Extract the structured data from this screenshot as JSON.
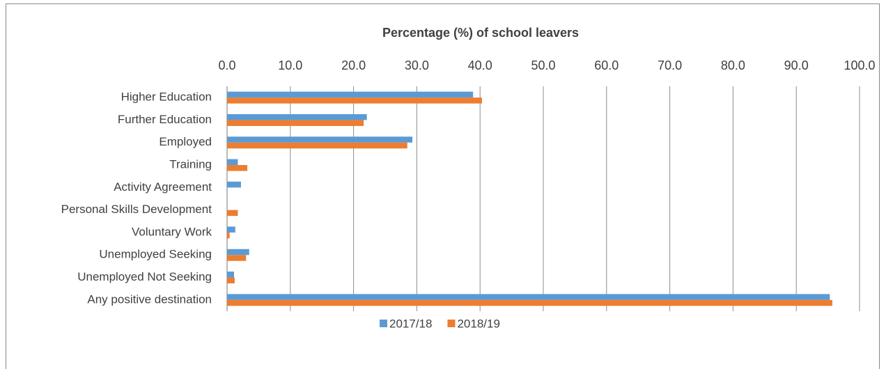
{
  "chart_data": {
    "type": "hbar",
    "axis_title": "Percentage (%) of school leavers",
    "categories": [
      "Higher Education",
      "Further Education",
      "Employed",
      "Training",
      "Activity Agreement",
      "Personal Skills Development",
      "Voluntary Work",
      "Unemployed Seeking",
      "Unemployed Not Seeking",
      "Any positive destination"
    ],
    "series": [
      {
        "name": "2017/18",
        "color": "#5b9bd5",
        "values": [
          38.9,
          22.1,
          29.3,
          1.7,
          2.2,
          0,
          1.3,
          3.5,
          1.1,
          95.3
        ]
      },
      {
        "name": "2018/19",
        "color": "#ed7d31",
        "values": [
          40.3,
          21.6,
          28.5,
          3.2,
          0,
          1.7,
          0.4,
          3.0,
          1.2,
          95.7
        ]
      }
    ],
    "xlim": [
      0,
      100
    ],
    "xticks": [
      {
        "value": 0,
        "label": "0.0"
      },
      {
        "value": 10,
        "label": "10.0"
      },
      {
        "value": 20,
        "label": "20.0"
      },
      {
        "value": 30,
        "label": "30.0"
      },
      {
        "value": 40,
        "label": "40.0"
      },
      {
        "value": 50,
        "label": "50.0"
      },
      {
        "value": 60,
        "label": "60.0"
      },
      {
        "value": 70,
        "label": "70.0"
      },
      {
        "value": 80,
        "label": "80.0"
      },
      {
        "value": 90,
        "label": "90.0"
      },
      {
        "value": 100,
        "label": "100.0"
      }
    ],
    "grid": true,
    "legend": "bottom"
  }
}
